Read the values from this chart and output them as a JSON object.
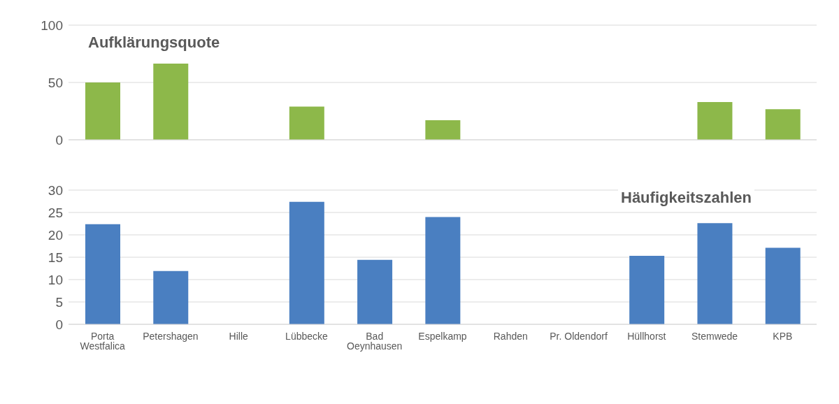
{
  "chart_data": [
    {
      "type": "bar",
      "title": "Aufklärungsquote",
      "categories": [
        null,
        null,
        null,
        null,
        null,
        null,
        null,
        null,
        null,
        null,
        null
      ],
      "values": [
        50,
        66.5,
        null,
        29,
        null,
        17,
        null,
        null,
        null,
        33,
        26.7
      ],
      "color": "#8db84a",
      "ylim": [
        0,
        100
      ],
      "yticks": [
        0,
        50,
        100
      ],
      "grid": "y",
      "tick_labels": "y"
    },
    {
      "type": "bar",
      "title": "Häufigkeitszahlen",
      "categories": [
        "Porta Westfalica",
        "Petershagen",
        "Hille",
        "Lübbecke",
        "Bad Oeynhausen",
        "Espelkamp",
        "Rahden",
        "Pr. Oldendorf",
        "Hüllhorst",
        "Stemwede",
        "KPB"
      ],
      "values": [
        22.4,
        11.9,
        null,
        27.4,
        14.4,
        24,
        null,
        null,
        15.3,
        22.6,
        17.1
      ],
      "color": "#4a7fc1",
      "ylim": [
        0,
        30
      ],
      "yticks": [
        0,
        5,
        10,
        15,
        20,
        25,
        30
      ],
      "grid": "y"
    }
  ]
}
